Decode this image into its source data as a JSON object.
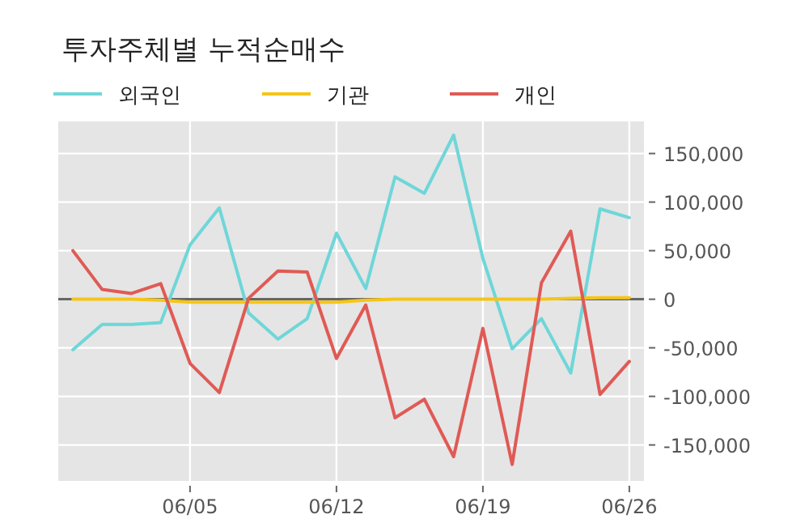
{
  "chart_data": {
    "type": "line",
    "title": "투자주체별 누적순매수",
    "categories": [
      null,
      null,
      null,
      null,
      "06/05",
      null,
      null,
      null,
      null,
      "06/12",
      null,
      null,
      null,
      null,
      "06/19",
      null,
      null,
      null,
      null,
      "06/26"
    ],
    "series": [
      {
        "name": "외국인",
        "color": "#6fd6d8",
        "values": [
          -52000,
          -26000,
          -26000,
          -24000,
          56000,
          94000,
          -14000,
          -41000,
          -20000,
          68000,
          11000,
          126000,
          109000,
          169000,
          42000,
          -51000,
          -20000,
          -76000,
          93000,
          84000
        ]
      },
      {
        "name": "기관",
        "color": "#f5c518",
        "values": [
          0,
          0,
          0,
          -1000,
          -3000,
          -3000,
          -3000,
          -3000,
          -3000,
          -3000,
          -1000,
          0,
          0,
          0,
          0,
          0,
          0,
          1000,
          1500,
          1500
        ]
      },
      {
        "name": "개인",
        "color": "#e05a55",
        "values": [
          50000,
          10000,
          6000,
          16000,
          -66000,
          -96000,
          1000,
          29000,
          28000,
          -61000,
          -6000,
          -122000,
          -103000,
          -162000,
          -30000,
          -170000,
          17000,
          70000,
          -98000,
          -64000
        ]
      }
    ],
    "ylim": [
      -187000,
      183000
    ],
    "yticks": [
      {
        "value": -150000,
        "label": "-150,000"
      },
      {
        "value": -100000,
        "label": "-100,000"
      },
      {
        "value": -50000,
        "label": "-50,000"
      },
      0,
      {
        "value": 50000,
        "label": "50,000"
      },
      {
        "value": 100000,
        "label": "100,000"
      },
      {
        "value": 150000,
        "label": "150,000"
      }
    ],
    "ref_lines": [
      {
        "axis": "y",
        "value": 0,
        "color": "#666666"
      }
    ],
    "grid": true,
    "legend": "top left",
    "marker": "none",
    "line_style": "solid"
  }
}
